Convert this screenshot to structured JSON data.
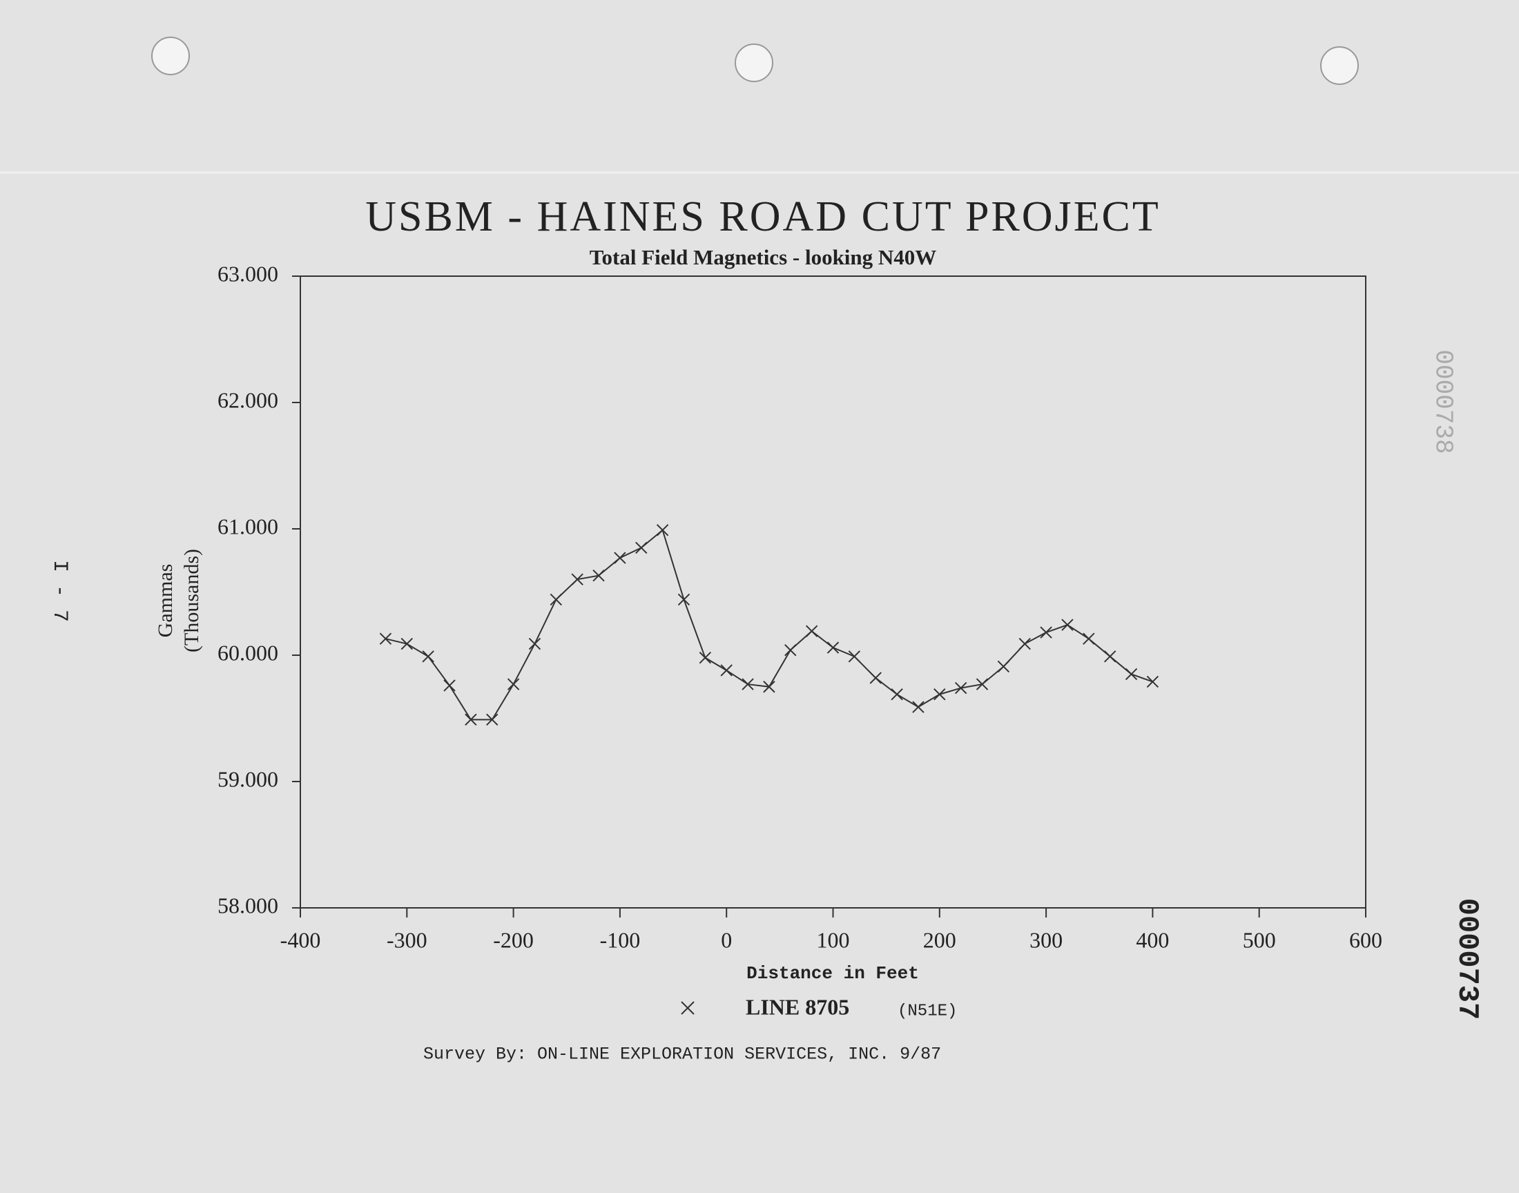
{
  "chart_data": {
    "type": "line",
    "title": "USBM - HAINES ROAD CUT PROJECT",
    "subtitle": "Total Field Magnetics - looking N40W",
    "x_label": "Distance in Feet",
    "y_label_lines": [
      "Gammas",
      "(Thousands)"
    ],
    "x": [
      -320,
      -300,
      -280,
      -260,
      -240,
      -220,
      -200,
      -180,
      -160,
      -140,
      -120,
      -100,
      -80,
      -60,
      -40,
      -20,
      0,
      20,
      40,
      60,
      80,
      100,
      120,
      140,
      160,
      180,
      200,
      220,
      240,
      260,
      280,
      300,
      320,
      340,
      360,
      380,
      400
    ],
    "series": [
      {
        "name": "LINE 8705",
        "color": "#333333",
        "values": [
          60.13,
          60.09,
          59.99,
          59.76,
          59.49,
          59.49,
          59.77,
          60.09,
          60.44,
          60.6,
          60.63,
          60.77,
          60.85,
          60.99,
          60.44,
          59.98,
          59.88,
          59.77,
          59.75,
          60.04,
          60.19,
          60.06,
          59.99,
          59.82,
          59.69,
          59.59,
          59.69,
          59.74,
          59.77,
          59.91,
          60.09,
          60.18,
          60.24,
          60.13,
          59.99,
          59.85,
          59.79
        ]
      }
    ],
    "legend_note": "(N51E)",
    "xlim": [
      -400,
      600
    ],
    "xticks": [
      -400,
      -300,
      -200,
      -100,
      0,
      100,
      200,
      300,
      400,
      500,
      600
    ],
    "ylim": [
      58,
      63
    ],
    "yticks": [
      {
        "value": 58,
        "label": "58.000"
      },
      {
        "value": 59,
        "label": "59.000"
      },
      {
        "value": 60,
        "label": "60.000"
      },
      {
        "value": 61,
        "label": "61.000"
      },
      {
        "value": 62,
        "label": "62.000"
      },
      {
        "value": 63,
        "label": "63.000"
      }
    ],
    "footer": "Survey By:  ON-LINE EXPLORATION SERVICES, INC.  9/87",
    "annotations": [
      "I - 7",
      "0000738",
      "0000737"
    ]
  }
}
